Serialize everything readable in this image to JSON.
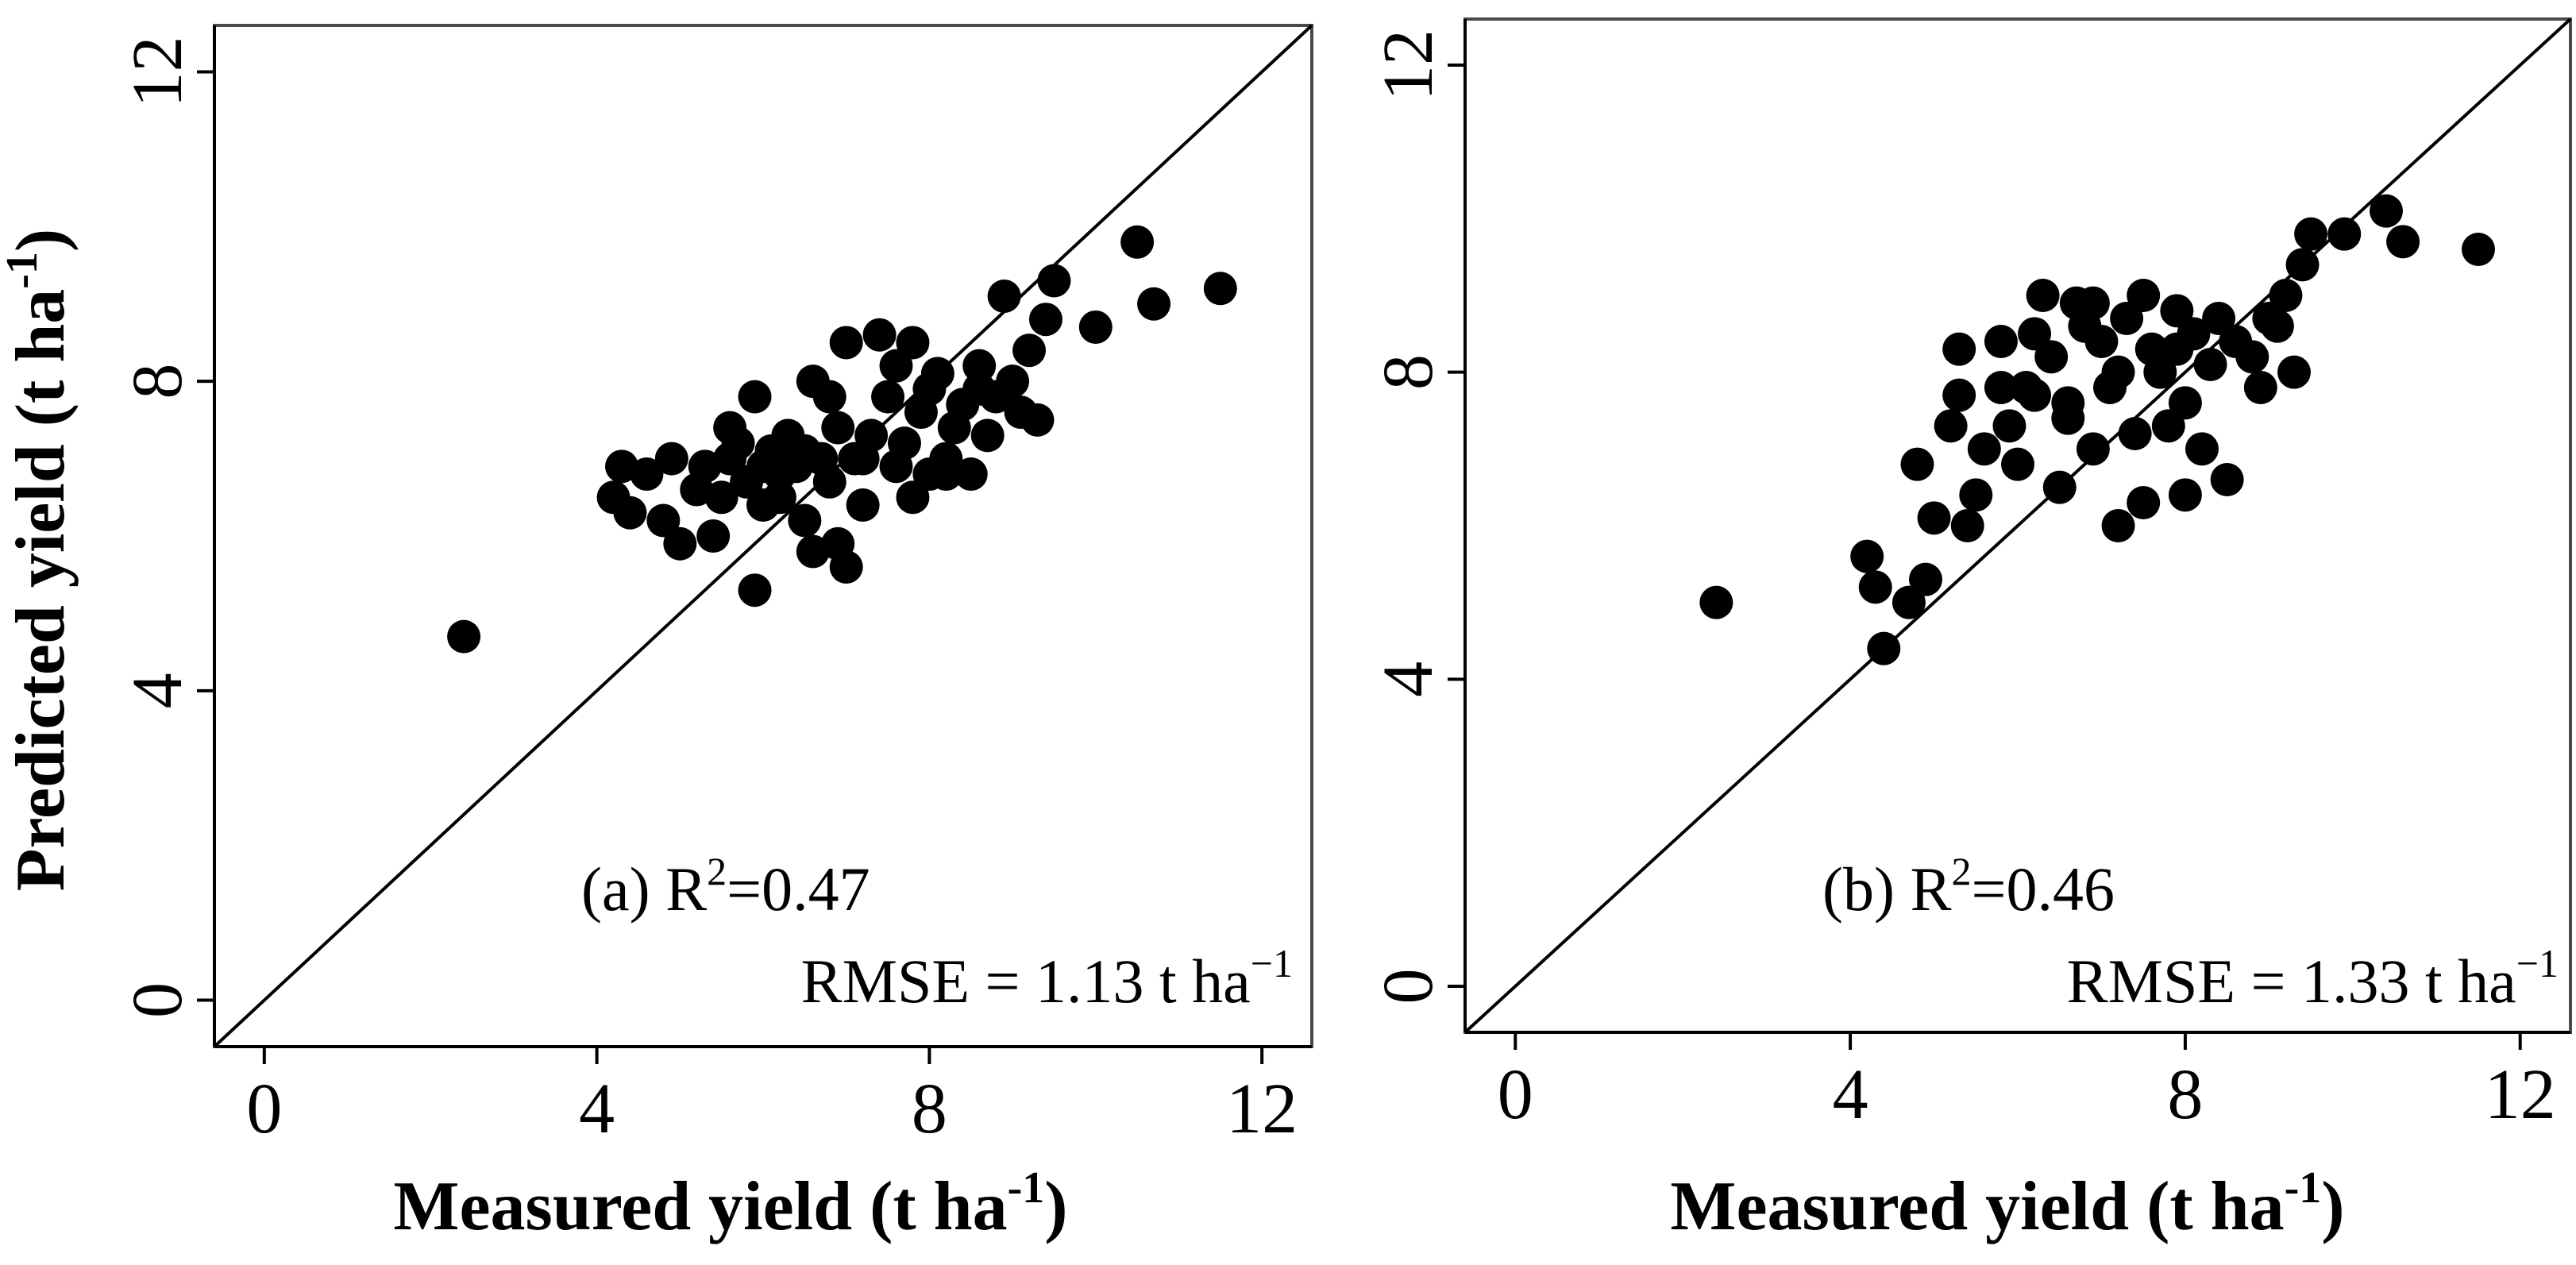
{
  "chart_data": [
    {
      "type": "scatter",
      "panel": "a",
      "annotation_label": "(a) R",
      "r2_value": "=0.47",
      "rmse_text": "RMSE = 1.13 t ha",
      "unit_exp": "−1",
      "sup_two": "2",
      "xlabel": "Measured yield (t ha",
      "xlabel_exp": "-1",
      "xlabel_close": ")",
      "ylabel": "Predicted yield (t ha",
      "ylabel_exp": "-1",
      "ylabel_close": ")",
      "xlim": [
        -0.6,
        12.6
      ],
      "ylim": [
        -0.6,
        12.6
      ],
      "xticks": [
        "0",
        "4",
        "8",
        "12"
      ],
      "yticks": [
        "0",
        "4",
        "8",
        "12"
      ],
      "identity_line": true,
      "points": [
        [
          2.4,
          4.7
        ],
        [
          4.2,
          6.5
        ],
        [
          4.3,
          6.9
        ],
        [
          4.4,
          6.3
        ],
        [
          4.6,
          6.8
        ],
        [
          4.8,
          6.2
        ],
        [
          4.9,
          7.0
        ],
        [
          5.0,
          5.9
        ],
        [
          5.2,
          6.6
        ],
        [
          5.3,
          6.9
        ],
        [
          5.4,
          6.0
        ],
        [
          5.5,
          6.5
        ],
        [
          5.6,
          7.4
        ],
        [
          5.7,
          7.2
        ],
        [
          5.8,
          6.7
        ],
        [
          5.9,
          7.8
        ],
        [
          5.9,
          5.3
        ],
        [
          6.0,
          6.4
        ],
        [
          6.1,
          7.1
        ],
        [
          6.2,
          6.8
        ],
        [
          6.2,
          6.5
        ],
        [
          6.3,
          7.3
        ],
        [
          6.4,
          6.9
        ],
        [
          6.5,
          7.1
        ],
        [
          6.5,
          6.2
        ],
        [
          6.6,
          8.0
        ],
        [
          6.6,
          5.8
        ],
        [
          6.7,
          7.0
        ],
        [
          6.8,
          6.7
        ],
        [
          6.9,
          5.9
        ],
        [
          6.9,
          7.4
        ],
        [
          7.0,
          8.5
        ],
        [
          7.0,
          5.6
        ],
        [
          7.1,
          7.0
        ],
        [
          7.2,
          6.4
        ],
        [
          7.3,
          7.3
        ],
        [
          7.4,
          8.6
        ],
        [
          7.5,
          7.8
        ],
        [
          7.6,
          6.9
        ],
        [
          7.6,
          8.2
        ],
        [
          7.7,
          7.2
        ],
        [
          7.8,
          6.5
        ],
        [
          7.9,
          7.6
        ],
        [
          8.0,
          6.8
        ],
        [
          8.0,
          7.9
        ],
        [
          8.1,
          8.1
        ],
        [
          8.2,
          7.0
        ],
        [
          8.3,
          7.4
        ],
        [
          8.4,
          7.7
        ],
        [
          8.5,
          6.8
        ],
        [
          8.6,
          8.2
        ],
        [
          8.7,
          7.3
        ],
        [
          8.8,
          7.8
        ],
        [
          8.9,
          9.1
        ],
        [
          9.0,
          8.0
        ],
        [
          9.1,
          7.6
        ],
        [
          9.2,
          8.4
        ],
        [
          9.3,
          7.5
        ],
        [
          9.4,
          8.8
        ],
        [
          9.5,
          9.3
        ],
        [
          10.0,
          8.7
        ],
        [
          10.5,
          9.8
        ],
        [
          10.7,
          9.0
        ],
        [
          11.5,
          9.2
        ],
        [
          6.3,
          7.1
        ],
        [
          7.2,
          7.0
        ],
        [
          8.2,
          6.8
        ],
        [
          7.8,
          8.5
        ],
        [
          6.0,
          6.9
        ],
        [
          5.6,
          7.0
        ],
        [
          8.6,
          7.9
        ],
        [
          6.8,
          7.8
        ]
      ]
    },
    {
      "type": "scatter",
      "panel": "b",
      "annotation_label": "(b) R",
      "r2_value": "=0.46",
      "rmse_text": "RMSE = 1.33  t ha",
      "unit_exp": "−1",
      "sup_two": "2",
      "xlabel": "Measured yield (t ha",
      "xlabel_exp": "-1",
      "xlabel_close": ")",
      "ylabel": "",
      "xlim": [
        -0.6,
        12.6
      ],
      "ylim": [
        -0.6,
        12.6
      ],
      "xticks": [
        "0",
        "4",
        "8",
        "12"
      ],
      "yticks": [
        "0",
        "4",
        "8",
        "12"
      ],
      "identity_line": true,
      "points": [
        [
          2.4,
          5.0
        ],
        [
          4.2,
          5.6
        ],
        [
          4.3,
          5.2
        ],
        [
          4.4,
          4.4
        ],
        [
          4.7,
          5.0
        ],
        [
          4.8,
          6.8
        ],
        [
          4.9,
          5.3
        ],
        [
          5.0,
          6.1
        ],
        [
          5.2,
          7.3
        ],
        [
          5.3,
          8.3
        ],
        [
          5.3,
          7.7
        ],
        [
          5.4,
          6.0
        ],
        [
          5.5,
          6.4
        ],
        [
          5.6,
          7.0
        ],
        [
          5.8,
          8.4
        ],
        [
          5.9,
          7.3
        ],
        [
          6.0,
          6.8
        ],
        [
          6.1,
          7.8
        ],
        [
          6.2,
          8.5
        ],
        [
          6.3,
          9.0
        ],
        [
          6.4,
          8.2
        ],
        [
          6.5,
          6.5
        ],
        [
          6.6,
          7.4
        ],
        [
          6.7,
          8.9
        ],
        [
          6.8,
          8.6
        ],
        [
          6.9,
          7.0
        ],
        [
          7.0,
          8.4
        ],
        [
          7.1,
          7.8
        ],
        [
          7.2,
          6.0
        ],
        [
          7.3,
          8.7
        ],
        [
          7.4,
          7.2
        ],
        [
          7.5,
          9.0
        ],
        [
          7.6,
          8.3
        ],
        [
          7.7,
          8.0
        ],
        [
          7.8,
          7.3
        ],
        [
          7.9,
          8.8
        ],
        [
          8.0,
          7.6
        ],
        [
          8.1,
          8.5
        ],
        [
          8.2,
          7.0
        ],
        [
          8.3,
          8.1
        ],
        [
          8.4,
          8.7
        ],
        [
          8.5,
          6.6
        ],
        [
          8.6,
          8.4
        ],
        [
          8.8,
          8.2
        ],
        [
          8.9,
          7.8
        ],
        [
          9.0,
          8.7
        ],
        [
          9.1,
          8.6
        ],
        [
          9.2,
          9.0
        ],
        [
          9.3,
          8.0
        ],
        [
          9.4,
          9.4
        ],
        [
          9.5,
          9.8
        ],
        [
          9.9,
          9.8
        ],
        [
          10.4,
          10.1
        ],
        [
          10.6,
          9.7
        ],
        [
          11.5,
          9.6
        ],
        [
          7.5,
          6.3
        ],
        [
          8.0,
          6.4
        ],
        [
          6.6,
          7.6
        ],
        [
          7.2,
          8.0
        ],
        [
          7.9,
          8.3
        ],
        [
          6.2,
          7.7
        ],
        [
          5.8,
          7.8
        ],
        [
          6.9,
          8.9
        ]
      ]
    }
  ]
}
